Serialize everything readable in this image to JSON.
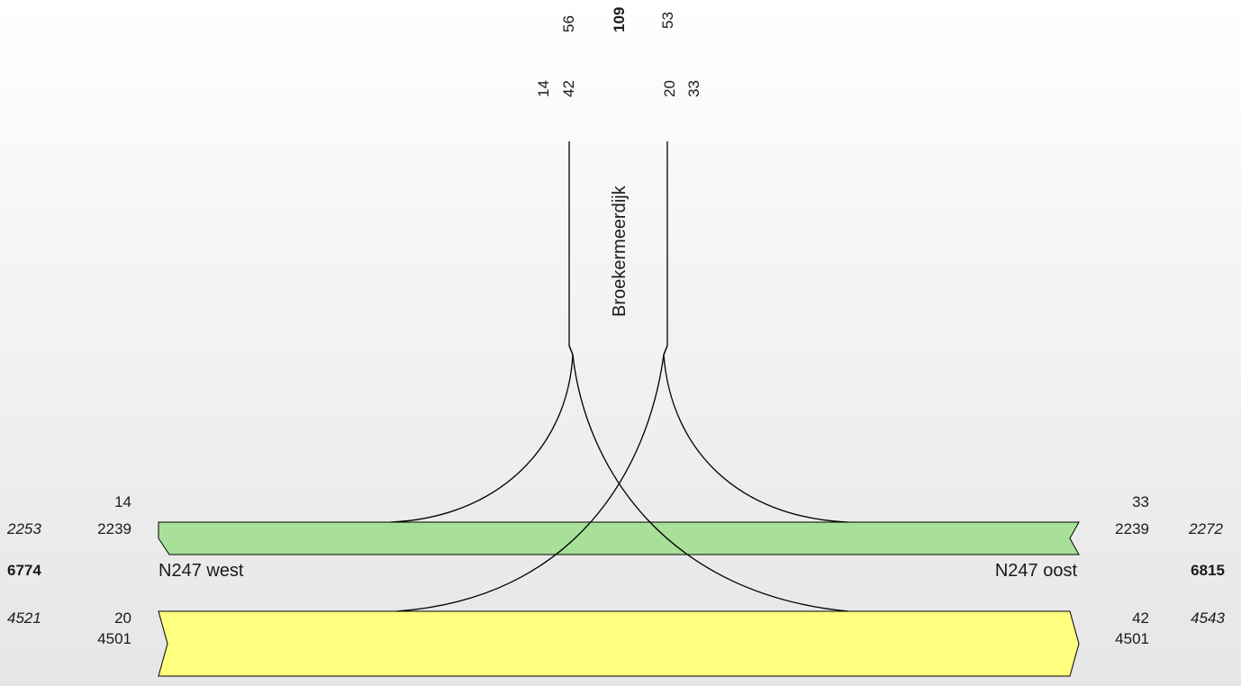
{
  "colors": {
    "green_band": "#a8e09a",
    "yellow_band": "#ffff80",
    "line": "#000000"
  },
  "top": {
    "total_in": "56",
    "total": "109",
    "total_out": "53",
    "left_upper": "14",
    "left_lower": "42",
    "right_upper": "20",
    "right_lower": "33",
    "road_name": "Broekermeerdijk"
  },
  "west": {
    "turn_top": "14",
    "total_top": "2253",
    "straight_top": "2239",
    "grand_total": "6774",
    "road_name": "N247 west",
    "total_bottom": "4521",
    "turn_bottom": "20",
    "straight_bottom": "4501"
  },
  "east": {
    "turn_top": "33",
    "straight_top": "2239",
    "total_top": "2272",
    "road_name": "N247 oost",
    "grand_total": "6815",
    "turn_bottom": "42",
    "total_bottom": "4543",
    "straight_bottom": "4501"
  }
}
